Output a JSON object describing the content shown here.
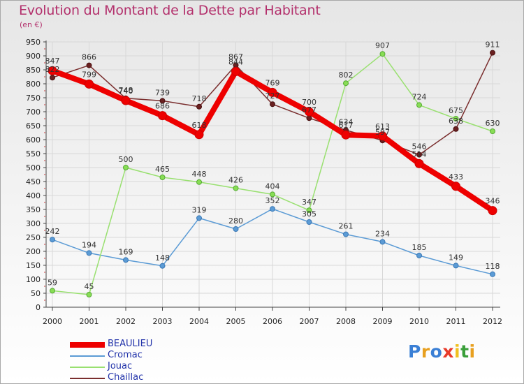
{
  "header": {
    "title": "Evolution du Montant de la Dette par Habitant",
    "subtitle": "(en €)"
  },
  "logo": {
    "text": "Proxiti",
    "colors": [
      "#3a7fd5",
      "#e8a020",
      "#3a7fd5",
      "#e83a2a",
      "#f0c020",
      "#3a9f3a",
      "#e8a020"
    ]
  },
  "chart_data": {
    "type": "line",
    "title": "Evolution du Montant de la Dette par Habitant",
    "subtitle": "(en €)",
    "xlabel": "",
    "ylabel": "",
    "x": [
      "2000",
      "2001",
      "2002",
      "2003",
      "2004",
      "2005",
      "2006",
      "2007",
      "2008",
      "2009",
      "2010",
      "2011",
      "2012"
    ],
    "ylim": [
      0,
      950
    ],
    "yticks": [
      0,
      50,
      100,
      150,
      200,
      250,
      300,
      350,
      400,
      450,
      500,
      550,
      600,
      650,
      700,
      750,
      800,
      850,
      900,
      950
    ],
    "grid": true,
    "legend": "bottom-left",
    "series": [
      {
        "name": "BEAULIEU",
        "color": "#ee0000",
        "values": [
          847,
          799,
          740,
          686,
          618,
          844,
          769,
          700,
          617,
          613,
          514,
          433,
          346
        ]
      },
      {
        "name": "Cromac",
        "color": "#5b9bd5",
        "values": [
          242,
          194,
          169,
          148,
          319,
          280,
          352,
          305,
          261,
          234,
          185,
          149,
          118
        ]
      },
      {
        "name": "Jouac",
        "color": "#99e070",
        "values": [
          59,
          45,
          500,
          465,
          448,
          426,
          404,
          347,
          802,
          907,
          724,
          675,
          630
        ]
      },
      {
        "name": "Chaillac",
        "color": "#7a2e2e",
        "values": [
          822,
          866,
          748,
          739,
          718,
          867,
          727,
          677,
          634,
          597,
          546,
          638,
          911
        ]
      }
    ],
    "point_labels": [
      [
        847,
        799,
        740,
        686,
        618,
        844,
        769,
        700,
        617,
        613,
        514,
        433,
        346
      ],
      [
        242,
        194,
        169,
        148,
        319,
        280,
        352,
        305,
        261,
        234,
        185,
        149,
        118
      ],
      [
        59,
        45,
        500,
        465,
        448,
        426,
        404,
        347,
        802,
        907,
        724,
        675,
        630
      ],
      [
        822,
        866,
        748,
        739,
        718,
        867,
        727,
        677,
        634,
        597,
        546,
        638,
        911
      ]
    ]
  }
}
